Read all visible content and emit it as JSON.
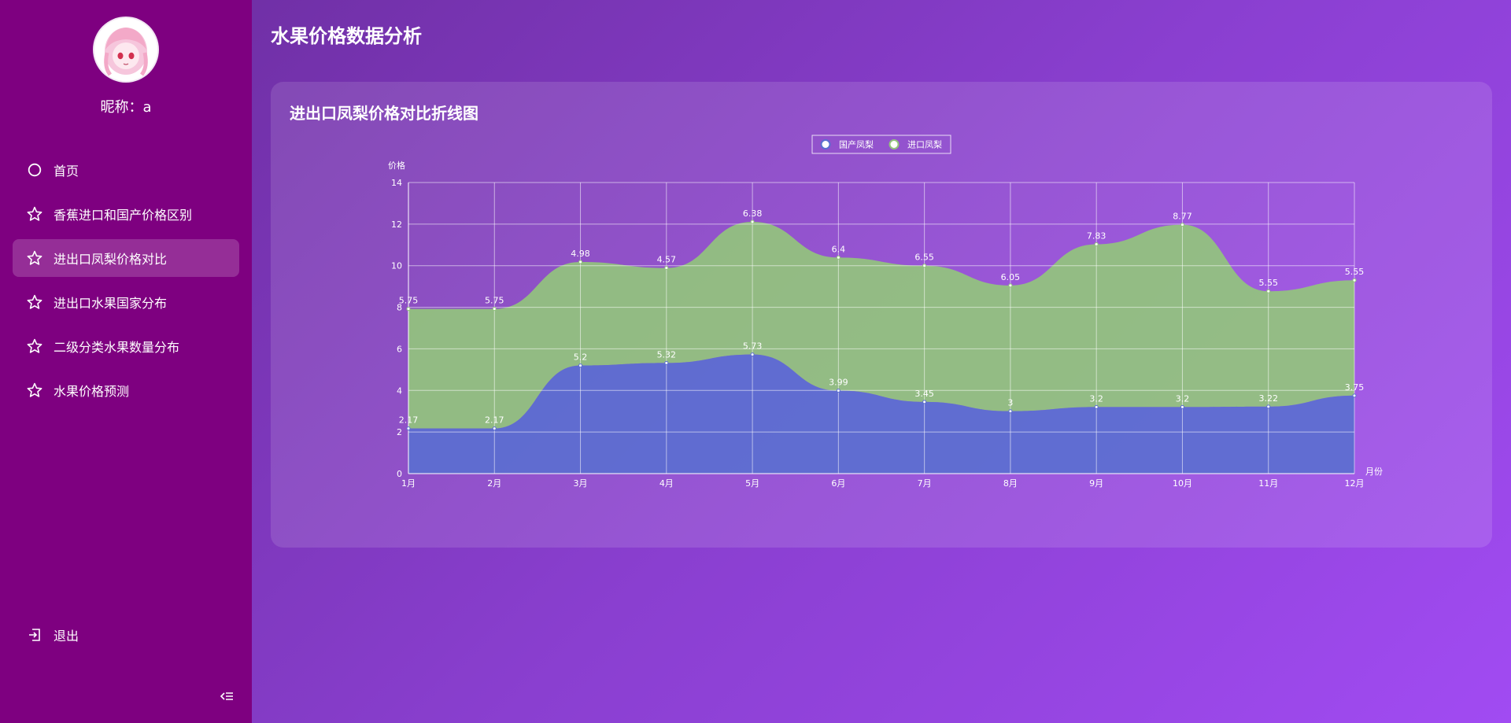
{
  "sidebar": {
    "nickname": "昵称：a",
    "items": [
      {
        "label": "首页",
        "icon": "circle-icon"
      },
      {
        "label": "香蕉进口和国产价格区别",
        "icon": "star-icon"
      },
      {
        "label": "进出口凤梨价格对比",
        "icon": "star-icon"
      },
      {
        "label": "进出口水果国家分布",
        "icon": "star-icon"
      },
      {
        "label": "二级分类水果数量分布",
        "icon": "star-icon"
      },
      {
        "label": "水果价格预测",
        "icon": "star-icon"
      }
    ],
    "logout_label": "退出"
  },
  "header": {
    "title": "水果价格数据分析"
  },
  "card": {
    "title": "进出口凤梨价格对比折线图"
  },
  "colors": {
    "sidebar_bg": "#7e0080",
    "domestic": "#5b6fd0",
    "imported": "#93c47d"
  },
  "chart_data": {
    "type": "area",
    "stacked": true,
    "categories": [
      "1月",
      "2月",
      "3月",
      "4月",
      "5月",
      "6月",
      "7月",
      "8月",
      "9月",
      "10月",
      "11月",
      "12月"
    ],
    "series": [
      {
        "name": "国产凤梨",
        "values": [
          2.17,
          2.17,
          5.2,
          5.32,
          5.73,
          3.99,
          3.45,
          3,
          3.2,
          3.2,
          3.22,
          3.75
        ]
      },
      {
        "name": "进口凤梨",
        "values": [
          5.75,
          5.75,
          4.98,
          4.57,
          6.38,
          6.4,
          6.55,
          6.05,
          7.83,
          8.77,
          5.55,
          5.55
        ]
      }
    ],
    "xlabel": "月份",
    "ylabel": "价格",
    "ylim": [
      0,
      14
    ],
    "yticks": [
      0,
      2,
      4,
      6,
      8,
      10,
      12,
      14
    ],
    "grid": true,
    "legend": "top-center"
  }
}
